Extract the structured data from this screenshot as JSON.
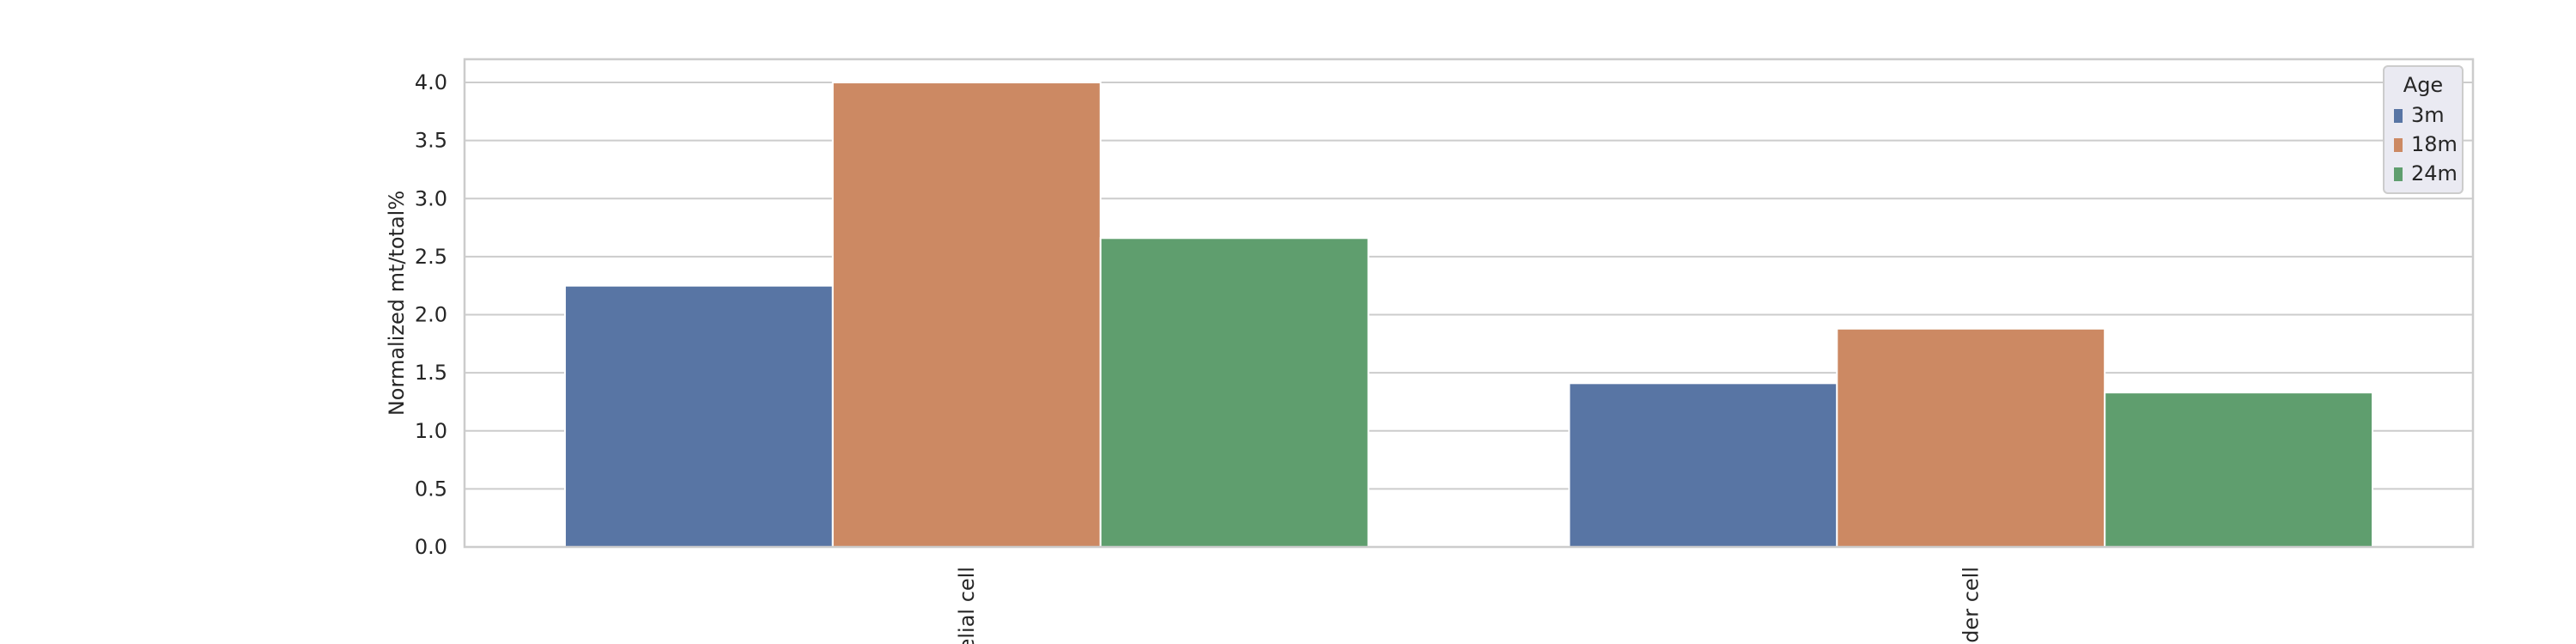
{
  "chart_data": {
    "type": "bar",
    "y_label": "Normalized mt/total%",
    "categories": [
      "elial cell",
      "dder cell"
    ],
    "series": [
      {
        "name": "3m",
        "color": "#5875a4",
        "values": [
          2.25,
          1.41
        ]
      },
      {
        "name": "18m",
        "color": "#cc8963",
        "values": [
          4.0,
          1.88
        ]
      },
      {
        "name": "24m",
        "color": "#5f9e6e",
        "values": [
          2.66,
          1.33
        ]
      }
    ],
    "ylim": [
      0,
      4.2
    ],
    "yticks": [
      {
        "value": 0,
        "label": "0.0"
      },
      {
        "value": 0.5,
        "label": "0.5"
      },
      {
        "value": 1,
        "label": "1.0"
      },
      {
        "value": 1.5,
        "label": "1.5"
      },
      {
        "value": 2,
        "label": "2.0"
      },
      {
        "value": 2.5,
        "label": "2.5"
      },
      {
        "value": 3,
        "label": "3.0"
      },
      {
        "value": 3.5,
        "label": "3.5"
      },
      {
        "value": 4,
        "label": "4.0"
      }
    ],
    "grid": true,
    "legend_title": "Age",
    "legend_position": "upper right"
  }
}
